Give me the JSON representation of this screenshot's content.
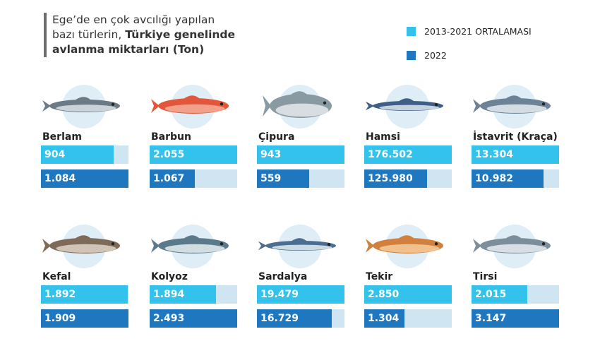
{
  "title": {
    "line1": "Ege’de en çok avcılığı yapılan",
    "line2_normal": "bazı türlerin, ",
    "line2_bold": "Türkiye genelinde",
    "line3_bold": "avlanma miktarları (Ton)"
  },
  "colors": {
    "avg": "#32c2ec",
    "y2022": "#1f78bf",
    "track": "#cfe5f2"
  },
  "chart_data": {
    "type": "bar",
    "title": "Ege’de en çok avcılığı yapılan bazı türlerin, Türkiye genelinde avlanma miktarları (Ton)",
    "categories": [
      "Berlam",
      "Barbun",
      "Çipura",
      "Hamsi",
      "İstavrit (Kraça)",
      "Kefal",
      "Kolyoz",
      "Sardalya",
      "Tekir",
      "Tirsi"
    ],
    "series": [
      {
        "name": "2013-2021 ORTALAMASI",
        "values": [
          904,
          2055,
          943,
          176502,
          13304,
          1892,
          1894,
          19479,
          2850,
          2015
        ],
        "labels": [
          "904",
          "2.055",
          "943",
          "176.502",
          "13.304",
          "1.892",
          "1.894",
          "19.479",
          "2.850",
          "2.015"
        ]
      },
      {
        "name": "2022",
        "values": [
          1084,
          1067,
          559,
          125980,
          10982,
          1909,
          2493,
          16729,
          1304,
          3147
        ],
        "labels": [
          "1.084",
          "1.067",
          "559",
          "125.980",
          "10.982",
          "1.909",
          "2.493",
          "16.729",
          "1.304",
          "3.147"
        ]
      }
    ],
    "legend": "top-right"
  }
}
